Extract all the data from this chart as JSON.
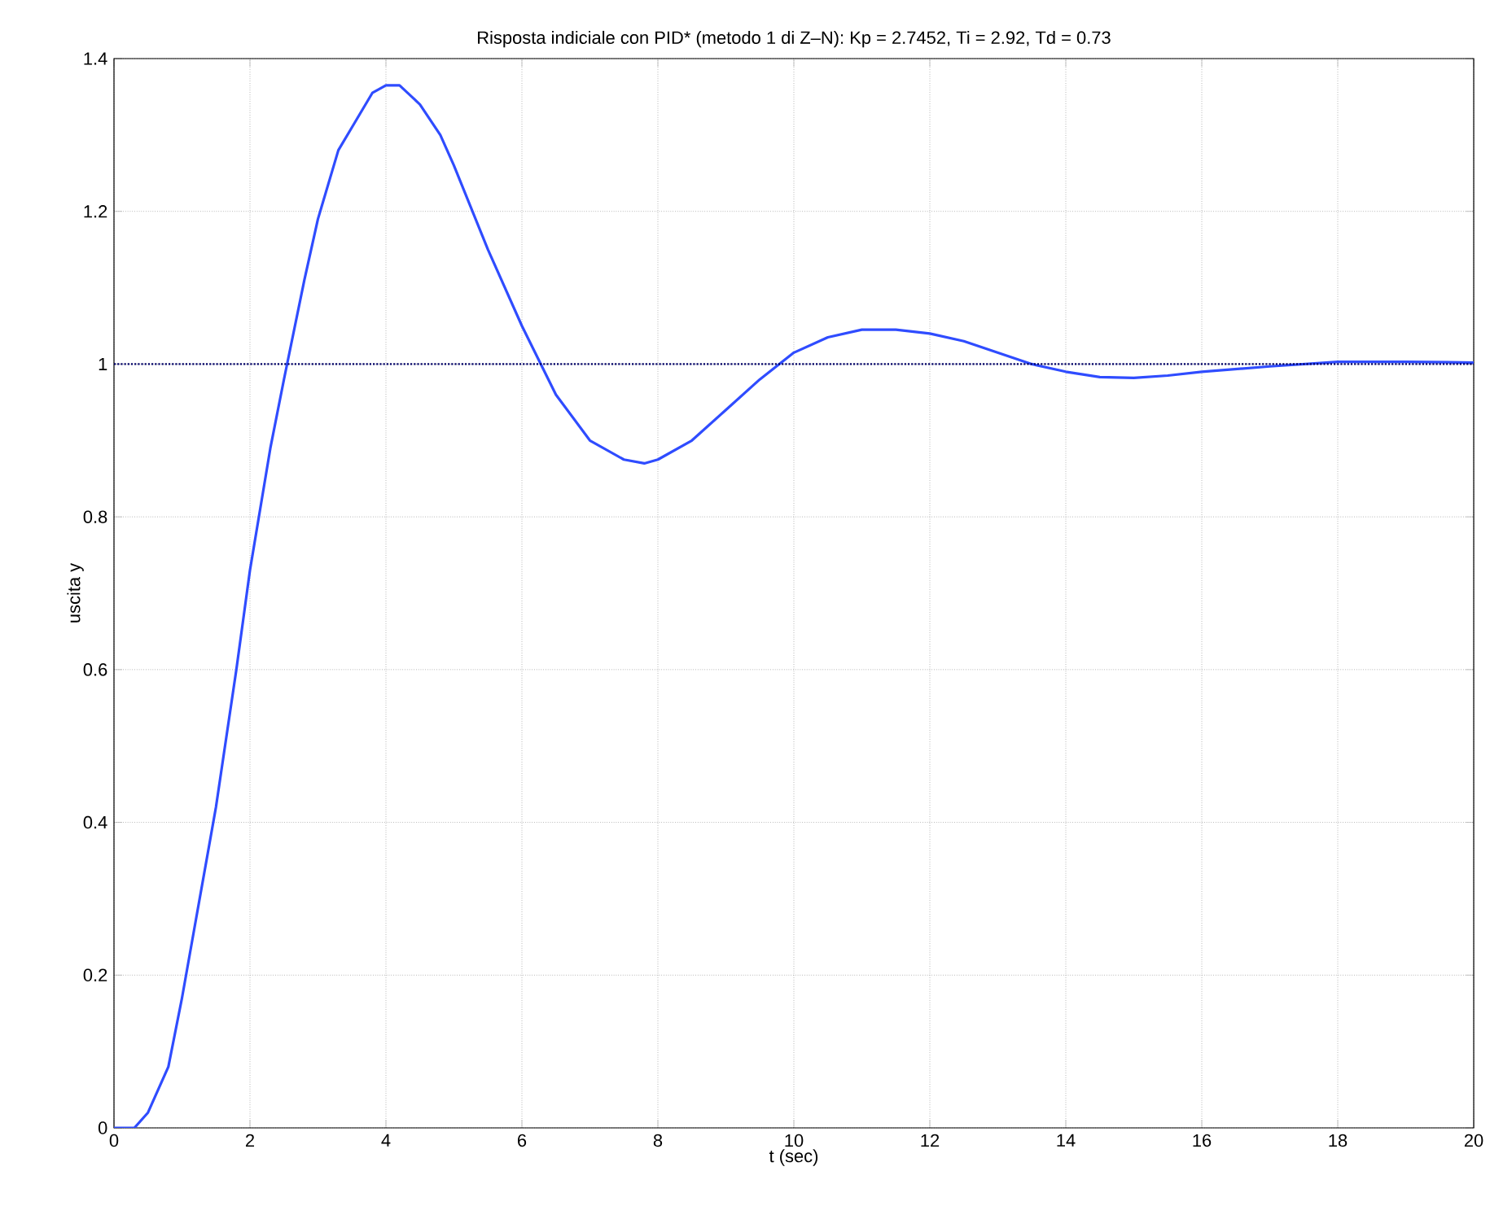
{
  "chart_data": {
    "type": "line",
    "title": "Risposta indiciale con PID* (metodo 1 di Z–N): Kp = 2.7452, Ti = 2.92, Td = 0.73",
    "xlabel": "t (sec)",
    "ylabel": "uscita y",
    "series": [
      {
        "color": "#2f4cff",
        "x": [
          0,
          0.3,
          0.5,
          0.8,
          1.0,
          1.2,
          1.5,
          1.8,
          2.0,
          2.3,
          2.5,
          2.8,
          3.0,
          3.3,
          3.5,
          3.8,
          4.0,
          4.2,
          4.5,
          4.8,
          5.0,
          5.5,
          6.0,
          6.5,
          7.0,
          7.5,
          7.8,
          8.0,
          8.5,
          9.0,
          9.5,
          10.0,
          10.5,
          11.0,
          11.5,
          12.0,
          12.5,
          13.0,
          13.5,
          14.0,
          14.5,
          15.0,
          15.5,
          16.0,
          17.0,
          18.0,
          19.0,
          20.0
        ],
        "values": [
          0,
          0.0,
          0.02,
          0.08,
          0.17,
          0.27,
          0.42,
          0.6,
          0.73,
          0.89,
          0.98,
          1.11,
          1.19,
          1.28,
          1.31,
          1.355,
          1.365,
          1.365,
          1.34,
          1.3,
          1.26,
          1.15,
          1.05,
          0.96,
          0.9,
          0.875,
          0.87,
          0.875,
          0.9,
          0.94,
          0.98,
          1.015,
          1.035,
          1.045,
          1.045,
          1.04,
          1.03,
          1.015,
          1.0,
          0.99,
          0.983,
          0.982,
          0.985,
          0.99,
          0.997,
          1.003,
          1.003,
          1.002
        ]
      }
    ],
    "ref_lines": [
      {
        "axis": "y",
        "value": 1,
        "color": "#000066",
        "line_style": "dotted"
      }
    ],
    "xlim": [
      0,
      20
    ],
    "ylim": [
      0,
      1.4
    ],
    "xticks": [
      0,
      2,
      4,
      6,
      8,
      10,
      12,
      14,
      16,
      18,
      20
    ],
    "yticks": [
      0,
      0.2,
      0.4,
      0.6,
      0.8,
      1,
      1.2,
      1.4
    ],
    "grid": true,
    "marker": "none",
    "line_style": "solid"
  }
}
